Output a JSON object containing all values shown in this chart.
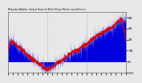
{
  "title": "Milwaukee Weather  Outdoor Temp (vs) Wind Chill per Minute (Last 24 Hours)",
  "bg_color": "#e8e8e8",
  "plot_bg_color": "#e8e8e8",
  "bar_color": "#0000dd",
  "line_color": "#dd0000",
  "ylim": [
    -10,
    45
  ],
  "xlim": [
    0,
    1440
  ],
  "yticks": [
    40,
    30,
    20,
    10,
    0,
    -10
  ],
  "ytick_labels": [
    "40",
    "30",
    "20",
    "10",
    "0",
    "-10"
  ],
  "vline_positions": [
    480,
    960
  ],
  "vline_color": "#888888",
  "seed": 77
}
